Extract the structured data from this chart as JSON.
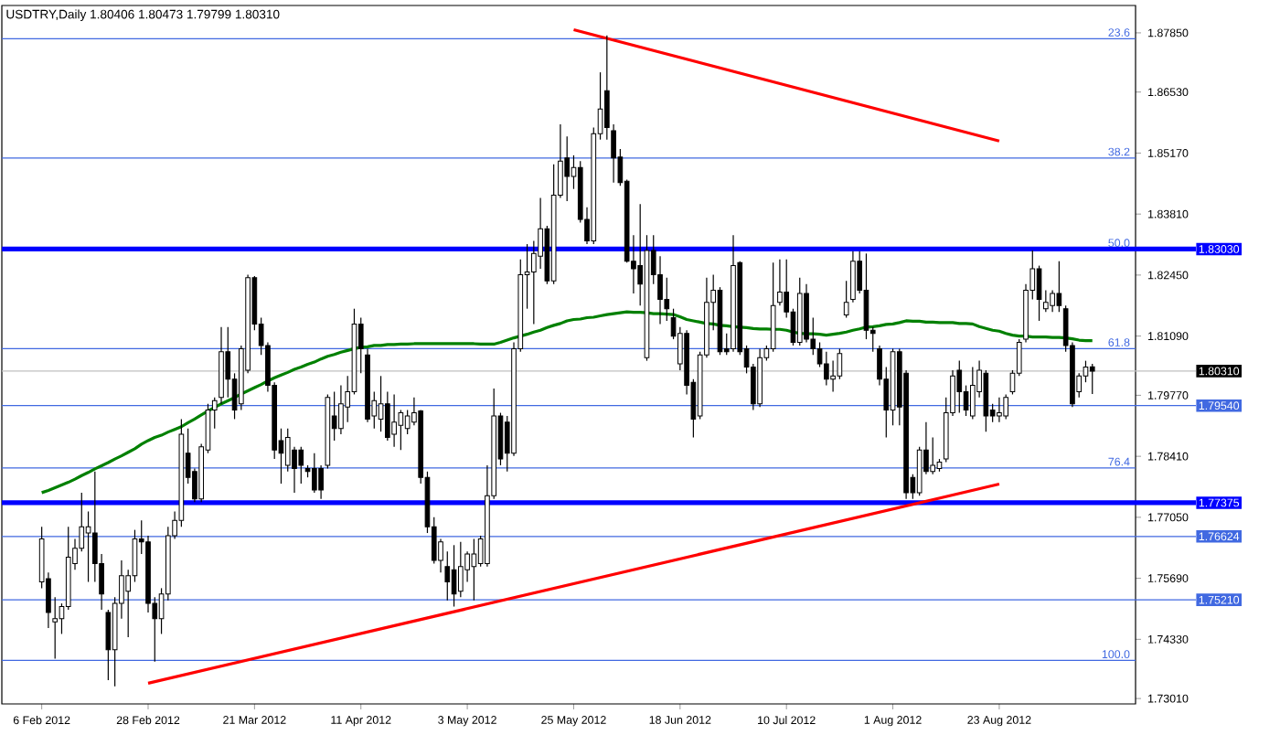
{
  "chart_data": {
    "type": "candlestick",
    "title": "USDTRY,Daily  1.80406 1.80473 1.79799 1.80310",
    "categories": [
      "6 Feb 2012",
      null,
      null,
      null,
      null,
      null,
      null,
      null,
      null,
      null,
      null,
      null,
      null,
      null,
      null,
      null,
      "28 Feb 2012",
      null,
      null,
      null,
      null,
      null,
      null,
      null,
      null,
      null,
      null,
      null,
      null,
      null,
      null,
      null,
      "21 Mar 2012",
      null,
      null,
      null,
      null,
      null,
      null,
      null,
      null,
      null,
      null,
      null,
      null,
      null,
      null,
      null,
      "11 Apr 2012",
      null,
      null,
      null,
      null,
      null,
      null,
      null,
      null,
      null,
      null,
      null,
      null,
      null,
      null,
      null,
      "3 May 2012",
      null,
      null,
      null,
      null,
      null,
      null,
      null,
      null,
      null,
      null,
      null,
      null,
      null,
      null,
      null,
      "25 May 2012",
      null,
      null,
      null,
      null,
      null,
      null,
      null,
      null,
      null,
      null,
      null,
      null,
      null,
      null,
      null,
      "18 Jun 2012",
      null,
      null,
      null,
      null,
      null,
      null,
      null,
      null,
      null,
      null,
      null,
      null,
      null,
      null,
      null,
      "10 Jul 2012",
      null,
      null,
      null,
      null,
      null,
      null,
      null,
      null,
      null,
      null,
      null,
      null,
      null,
      null,
      null,
      "1 Aug 2012",
      null,
      null,
      null,
      null,
      null,
      null,
      null,
      null,
      null,
      null,
      null,
      null,
      null,
      null,
      null,
      "23 Aug 2012",
      null,
      null,
      null,
      null,
      null,
      null,
      null,
      null,
      null,
      null,
      null,
      null,
      null,
      null
    ],
    "ohlc": [
      [
        1.7561,
        1.7684,
        1.7547,
        1.7657
      ],
      [
        1.7568,
        1.7582,
        1.7458,
        1.7493
      ],
      [
        1.7472,
        1.7527,
        1.739,
        1.7479
      ],
      [
        1.7479,
        1.7513,
        1.7445,
        1.7506
      ],
      [
        1.7506,
        1.7684,
        1.7499,
        1.7616
      ],
      [
        1.7602,
        1.7657,
        1.7588,
        1.7636
      ],
      [
        1.7636,
        1.776,
        1.7629,
        1.7684
      ],
      [
        1.767,
        1.7718,
        1.7561,
        1.7684
      ],
      [
        1.767,
        1.7807,
        1.7561,
        1.7602
      ],
      [
        1.7602,
        1.7623,
        1.7499,
        1.7534
      ],
      [
        1.7493,
        1.7499,
        1.7342,
        1.741
      ],
      [
        1.741,
        1.7527,
        1.7328,
        1.7513
      ],
      [
        1.7513,
        1.7609,
        1.7479,
        1.7575
      ],
      [
        1.754,
        1.7588,
        1.7438,
        1.7575
      ],
      [
        1.7575,
        1.7677,
        1.7561,
        1.7657
      ],
      [
        1.7657,
        1.7698,
        1.7623,
        1.765
      ],
      [
        1.765,
        1.7664,
        1.7493,
        1.7513
      ],
      [
        1.7513,
        1.7527,
        1.7383,
        1.7479
      ],
      [
        1.7479,
        1.7547,
        1.7445,
        1.7534
      ],
      [
        1.7534,
        1.7684,
        1.752,
        1.7664
      ],
      [
        1.7664,
        1.7718,
        1.7657,
        1.7698
      ],
      [
        1.7698,
        1.7924,
        1.7684,
        1.789
      ],
      [
        1.7848,
        1.7903,
        1.778,
        1.7794
      ],
      [
        1.7807,
        1.7814,
        1.7739,
        1.7746
      ],
      [
        1.7746,
        1.7869,
        1.7739,
        1.7862
      ],
      [
        1.7855,
        1.7958,
        1.7848,
        1.7944
      ],
      [
        1.7944,
        1.7972,
        1.7903,
        1.7965
      ],
      [
        1.7972,
        1.8129,
        1.7958,
        1.8074
      ],
      [
        1.8074,
        1.8129,
        1.7972,
        1.8013
      ],
      [
        1.8013,
        1.8026,
        1.7924,
        1.7944
      ],
      [
        1.7958,
        1.8088,
        1.7944,
        1.8081
      ],
      [
        1.8033,
        1.8246,
        1.8026,
        1.8239
      ],
      [
        1.8239,
        1.8243,
        1.8122,
        1.8136
      ],
      [
        1.8136,
        1.815,
        1.8067,
        1.8088
      ],
      [
        1.8088,
        1.8095,
        1.7985,
        1.7999
      ],
      [
        1.7999,
        1.8006,
        1.7835,
        1.7855
      ],
      [
        1.7876,
        1.7903,
        1.778,
        1.7848
      ],
      [
        1.7821,
        1.7903,
        1.7807,
        1.7883
      ],
      [
        1.7855,
        1.7862,
        1.776,
        1.7814
      ],
      [
        1.7855,
        1.7862,
        1.778,
        1.7821
      ],
      [
        1.7814,
        1.7821,
        1.7794,
        1.7807
      ],
      [
        1.7814,
        1.7848,
        1.776,
        1.7766
      ],
      [
        1.7814,
        1.7821,
        1.7746,
        1.7766
      ],
      [
        1.7821,
        1.7979,
        1.7814,
        1.7972
      ],
      [
        1.7931,
        1.7985,
        1.7876,
        1.7903
      ],
      [
        1.7903,
        1.7999,
        1.789,
        1.7958
      ],
      [
        1.7951,
        1.802,
        1.7917,
        1.7985
      ],
      [
        1.7985,
        1.817,
        1.7979,
        1.8136
      ],
      [
        1.8136,
        1.815,
        1.8026,
        1.8081
      ],
      [
        1.8067,
        1.8081,
        1.7917,
        1.7924
      ],
      [
        1.7931,
        1.7985,
        1.7903,
        1.7965
      ],
      [
        1.7924,
        1.802,
        1.7896,
        1.7958
      ],
      [
        1.7958,
        1.7985,
        1.7876,
        1.7883
      ],
      [
        1.789,
        1.7979,
        1.7862,
        1.7917
      ],
      [
        1.791,
        1.7944,
        1.7855,
        1.7938
      ],
      [
        1.7903,
        1.7944,
        1.789,
        1.7931
      ],
      [
        1.7917,
        1.7972,
        1.791,
        1.7938
      ],
      [
        1.7942,
        1.7944,
        1.778,
        1.7794
      ],
      [
        1.7794,
        1.7807,
        1.767,
        1.7684
      ],
      [
        1.7684,
        1.7705,
        1.7602,
        1.7609
      ],
      [
        1.7609,
        1.7657,
        1.7582,
        1.765
      ],
      [
        1.7595,
        1.7629,
        1.752,
        1.7561
      ],
      [
        1.7588,
        1.7643,
        1.7506,
        1.7534
      ],
      [
        1.754,
        1.765,
        1.7527,
        1.7595
      ],
      [
        1.7588,
        1.7629,
        1.7561,
        1.7623
      ],
      [
        1.7595,
        1.7657,
        1.752,
        1.7623
      ],
      [
        1.7602,
        1.7664,
        1.7595,
        1.7657
      ],
      [
        1.7602,
        1.7821,
        1.7595,
        1.7753
      ],
      [
        1.7753,
        1.7992,
        1.7746,
        1.7931
      ],
      [
        1.7931,
        1.7938,
        1.7821,
        1.7835
      ],
      [
        1.7917,
        1.7931,
        1.7807,
        1.7848
      ],
      [
        1.7848,
        1.8095,
        1.7842,
        1.8081
      ],
      [
        1.8081,
        1.828,
        1.8074,
        1.8246
      ],
      [
        1.8246,
        1.8314,
        1.817,
        1.8252
      ],
      [
        1.8252,
        1.8321,
        1.8136,
        1.8293
      ],
      [
        1.8287,
        1.8417,
        1.8259,
        1.8348
      ],
      [
        1.8348,
        1.8355,
        1.8225,
        1.8232
      ],
      [
        1.8232,
        1.8492,
        1.8225,
        1.8423
      ],
      [
        1.8423,
        1.8581,
        1.8417,
        1.8499
      ],
      [
        1.8506,
        1.8554,
        1.841,
        1.8465
      ],
      [
        1.8465,
        1.8512,
        1.8437,
        1.8485
      ],
      [
        1.8485,
        1.8499,
        1.8362,
        1.8369
      ],
      [
        1.8369,
        1.8396,
        1.8314,
        1.8321
      ],
      [
        1.8321,
        1.8574,
        1.8314,
        1.856
      ],
      [
        1.856,
        1.8697,
        1.8547,
        1.8615
      ],
      [
        1.8656,
        1.8779,
        1.8547,
        1.8574
      ],
      [
        1.8567,
        1.8581,
        1.8451,
        1.8506
      ],
      [
        1.8508,
        1.8526,
        1.8444,
        1.8451
      ],
      [
        1.8454,
        1.8458,
        1.8273,
        1.8276
      ],
      [
        1.8276,
        1.8334,
        1.8204,
        1.8259
      ],
      [
        1.8266,
        1.8403,
        1.8177,
        1.8225
      ],
      [
        1.8061,
        1.8334,
        1.8054,
        1.83
      ],
      [
        1.83,
        1.8334,
        1.8225,
        1.8246
      ],
      [
        1.8246,
        1.8287,
        1.8136,
        1.8191
      ],
      [
        1.8191,
        1.8239,
        1.8143,
        1.817
      ],
      [
        1.815,
        1.817,
        1.8102,
        1.8109
      ],
      [
        1.8047,
        1.8129,
        1.8033,
        1.8115
      ],
      [
        1.8115,
        1.8122,
        1.7979,
        1.7999
      ],
      [
        1.8006,
        1.8013,
        1.7883,
        1.7924
      ],
      [
        1.7931,
        1.8074,
        1.7924,
        1.8067
      ],
      [
        1.8067,
        1.8239,
        1.8061,
        1.8184
      ],
      [
        1.8184,
        1.8246,
        1.8122,
        1.8211
      ],
      [
        1.8211,
        1.8218,
        1.8067,
        1.8074
      ],
      [
        1.8081,
        1.8115,
        1.8067,
        1.8074
      ],
      [
        1.8081,
        1.8334,
        1.8074,
        1.8266
      ],
      [
        1.8273,
        1.8276,
        1.8067,
        1.8074
      ],
      [
        1.8081,
        1.8088,
        1.8026,
        1.804
      ],
      [
        1.804,
        1.8047,
        1.7944,
        1.7958
      ],
      [
        1.7958,
        1.8081,
        1.7951,
        1.8061
      ],
      [
        1.8061,
        1.8088,
        1.8054,
        1.8081
      ],
      [
        1.8081,
        1.8273,
        1.8074,
        1.8177
      ],
      [
        1.8184,
        1.828,
        1.8177,
        1.8207
      ],
      [
        1.8207,
        1.828,
        1.815,
        1.8163
      ],
      [
        1.8163,
        1.817,
        1.8088,
        1.8095
      ],
      [
        1.8095,
        1.8239,
        1.8088,
        1.8204
      ],
      [
        1.8204,
        1.8225,
        1.8095,
        1.8102
      ],
      [
        1.8102,
        1.815,
        1.8067,
        1.8081
      ],
      [
        1.8081,
        1.8095,
        1.804,
        1.8047
      ],
      [
        1.8047,
        1.8074,
        1.7999,
        1.8013
      ],
      [
        1.8013,
        1.8054,
        1.7985,
        1.802
      ],
      [
        1.802,
        1.8081,
        1.8013,
        1.807
      ],
      [
        1.8156,
        1.8232,
        1.815,
        1.8184
      ],
      [
        1.8191,
        1.8298,
        1.8184,
        1.8276
      ],
      [
        1.8276,
        1.8298,
        1.8204,
        1.8211
      ],
      [
        1.8211,
        1.8293,
        1.8102,
        1.8122
      ],
      [
        1.8122,
        1.8129,
        1.8074,
        1.8115
      ],
      [
        1.8081,
        1.8088,
        1.7999,
        1.8013
      ],
      [
        1.8013,
        1.804,
        1.7883,
        1.7944
      ],
      [
        1.7944,
        1.8081,
        1.791,
        1.8074
      ],
      [
        1.8074,
        1.8081,
        1.791,
        1.7951
      ],
      [
        1.8026,
        1.8033,
        1.7746,
        1.776
      ],
      [
        1.7794,
        1.7801,
        1.7746,
        1.776
      ],
      [
        1.776,
        1.7862,
        1.7753,
        1.7855
      ],
      [
        1.7855,
        1.7917,
        1.7801,
        1.7807
      ],
      [
        1.7807,
        1.7883,
        1.7801,
        1.7821
      ],
      [
        1.7814,
        1.7835,
        1.7807,
        1.7828
      ],
      [
        1.7835,
        1.7972,
        1.7828,
        1.7938
      ],
      [
        1.7938,
        1.8033,
        1.7931,
        1.802
      ],
      [
        1.8033,
        1.8054,
        1.7938,
        1.7985
      ],
      [
        1.7985,
        1.7999,
        1.7931,
        1.7944
      ],
      [
        1.7931,
        1.804,
        1.7924,
        1.7999
      ],
      [
        1.7985,
        1.8054,
        1.7972,
        1.8033
      ],
      [
        1.8026,
        1.8033,
        1.7896,
        1.7931
      ],
      [
        1.7944,
        1.7958,
        1.7917,
        1.7931
      ],
      [
        1.7931,
        1.7972,
        1.7917,
        1.7938
      ],
      [
        1.7931,
        1.7979,
        1.7924,
        1.7972
      ],
      [
        1.7985,
        1.8033,
        1.7979,
        1.8026
      ],
      [
        1.8026,
        1.8102,
        1.802,
        1.8095
      ],
      [
        1.8102,
        1.8225,
        1.8095,
        1.8211
      ],
      [
        1.8211,
        1.83,
        1.8191,
        1.8259
      ],
      [
        1.8259,
        1.8266,
        1.8143,
        1.8191
      ],
      [
        1.817,
        1.8211,
        1.8163,
        1.8184
      ],
      [
        1.8177,
        1.8211,
        1.8163,
        1.8204
      ],
      [
        1.8204,
        1.8276,
        1.8163,
        1.8177
      ],
      [
        1.817,
        1.8177,
        1.8074,
        1.8088
      ],
      [
        1.8088,
        1.8095,
        1.7951,
        1.7958
      ],
      [
        1.7985,
        1.8026,
        1.7972,
        1.802
      ],
      [
        1.802,
        1.8054,
        1.8006,
        1.804
      ],
      [
        1.80406,
        1.80473,
        1.79799,
        1.8031
      ]
    ],
    "series": [
      {
        "type": "line",
        "color": "#008000",
        "values": [
          1.776,
          1.7765,
          1.7771,
          1.7777,
          1.7783,
          1.779,
          1.7798,
          1.7805,
          1.7813,
          1.782,
          1.7827,
          1.7835,
          1.7842,
          1.785,
          1.7858,
          1.7868,
          1.7876,
          1.7883,
          1.7888,
          1.7895,
          1.7901,
          1.7907,
          1.7916,
          1.7924,
          1.7933,
          1.7942,
          1.795,
          1.7958,
          1.7965,
          1.7972,
          1.798,
          1.7987,
          1.7994,
          1.8001,
          1.8009,
          1.8016,
          1.8022,
          1.8028,
          1.8035,
          1.804,
          1.8046,
          1.8051,
          1.8058,
          1.8064,
          1.8068,
          1.8073,
          1.8077,
          1.8081,
          1.8084,
          1.8085,
          1.8088,
          1.8088,
          1.809,
          1.809,
          1.8091,
          1.8091,
          1.8092,
          1.8092,
          1.8092,
          1.8092,
          1.8092,
          1.8092,
          1.8092,
          1.8092,
          1.8092,
          1.8092,
          1.8091,
          1.8091,
          1.8091,
          1.8095,
          1.81,
          1.8105,
          1.8109,
          1.8113,
          1.8118,
          1.8122,
          1.8128,
          1.8133,
          1.8137,
          1.8143,
          1.8146,
          1.8147,
          1.815,
          1.8151,
          1.8154,
          1.8157,
          1.8159,
          1.8161,
          1.8163,
          1.8162,
          1.8162,
          1.8161,
          1.8159,
          1.8159,
          1.8158,
          1.8157,
          1.8152,
          1.8146,
          1.8143,
          1.814,
          1.8137,
          1.8136,
          1.8133,
          1.8132,
          1.813,
          1.8129,
          1.8128,
          1.8126,
          1.8125,
          1.8125,
          1.8124,
          1.8124,
          1.8122,
          1.8118,
          1.8115,
          1.8114,
          1.8114,
          1.8113,
          1.8111,
          1.8113,
          1.8115,
          1.8118,
          1.8122,
          1.8125,
          1.8129,
          1.813,
          1.8132,
          1.8135,
          1.8136,
          1.8139,
          1.8143,
          1.8142,
          1.8142,
          1.814,
          1.814,
          1.8139,
          1.8139,
          1.8139,
          1.8137,
          1.8137,
          1.8136,
          1.813,
          1.8126,
          1.8122,
          1.812,
          1.8115,
          1.8111,
          1.8109,
          1.8109,
          1.8107,
          1.8107,
          1.8107,
          1.8106,
          1.8106,
          1.8105,
          1.8103,
          1.81,
          1.8099,
          1.8099
        ]
      },
      {
        "type": "line",
        "color": "#ff0000",
        "x": [
          "25 May 2012",
          "23 Aug 2012"
        ],
        "values": [
          1.8792,
          1.8544
        ]
      },
      {
        "type": "line",
        "color": "#ff0000",
        "x": [
          "28 Feb 2012",
          "23 Aug 2012"
        ],
        "values": [
          1.7335,
          1.7779
        ]
      }
    ],
    "ylim": [
      1.7289,
      1.8846
    ],
    "yticks": [
      {
        "value": 1.8785,
        "label": "1.87850"
      },
      {
        "value": 1.8653,
        "label": "1.86530"
      },
      {
        "value": 1.8517,
        "label": "1.85170"
      },
      {
        "value": 1.8381,
        "label": "1.83810"
      },
      {
        "value": 1.8245,
        "label": "1.82450"
      },
      {
        "value": 1.8109,
        "label": "1.81090"
      },
      {
        "value": 1.7977,
        "label": "1.79770"
      },
      {
        "value": 1.7841,
        "label": "1.78410"
      },
      {
        "value": 1.7705,
        "label": "1.77050"
      },
      {
        "value": 1.7569,
        "label": "1.75690"
      },
      {
        "value": 1.7433,
        "label": "1.74330"
      },
      {
        "value": 1.7301,
        "label": "1.73010"
      }
    ],
    "ref_lines": [
      {
        "axis": "y",
        "value": 1.8772,
        "color": "#4169e1"
      },
      {
        "axis": "y",
        "value": 1.8506,
        "color": "#4169e1"
      },
      {
        "axis": "y",
        "value": 1.8081,
        "color": "#4169e1"
      },
      {
        "axis": "y",
        "value": 1.7815,
        "color": "#4169e1"
      },
      {
        "axis": "y",
        "value": 1.7386,
        "color": "#4169e1"
      },
      {
        "axis": "y",
        "value": 1.8031,
        "label": "1.80310",
        "color": "#c0c0c0"
      },
      {
        "axis": "y",
        "value": 1.7954,
        "label": "1.79540",
        "color": "#4169e1"
      },
      {
        "axis": "y",
        "value": 1.76624,
        "label": "1.76624",
        "color": "#4169e1"
      },
      {
        "axis": "y",
        "value": 1.7521,
        "label": "1.75210",
        "color": "#4169e1"
      },
      {
        "axis": "y",
        "value": 1.8303,
        "label": "1.83030",
        "color": "#0000ff"
      },
      {
        "axis": "y",
        "value": 1.77375,
        "label": "1.77375",
        "color": "#0000ff"
      }
    ],
    "annotations": [
      {
        "text": "23.6",
        "y": 1.8772
      },
      {
        "text": "38.2",
        "y": 1.8506
      },
      {
        "text": "50.0",
        "y": 1.8303
      },
      {
        "text": "61.8",
        "y": 1.8081
      },
      {
        "text": "76.4",
        "y": 1.7815
      },
      {
        "text": "100.0",
        "y": 1.7386
      }
    ]
  }
}
